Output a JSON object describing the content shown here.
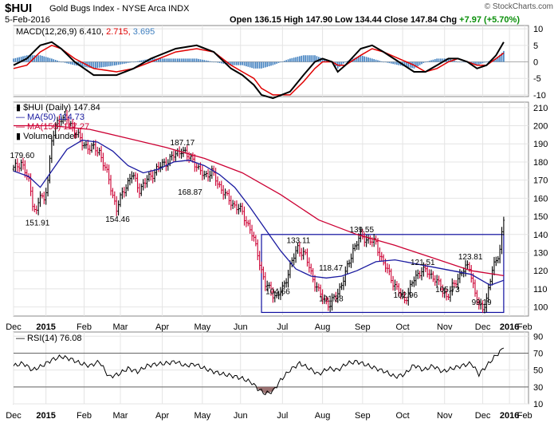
{
  "header": {
    "symbol": "$HUI",
    "name": "Gold Bugs Index - NYSE Arca INDX",
    "date": "5-Feb-2016",
    "open_label": "Open",
    "open": "136.15",
    "high_label": "High",
    "high": "147.90",
    "low_label": "Low",
    "low": "134.44",
    "close_label": "Close",
    "close": "147.84",
    "chg_label": "Chg",
    "chg": "+7.97 (+5.70%)",
    "brand": "© StockCharts.com"
  },
  "colors": {
    "up": "#000000",
    "down": "#cc0033",
    "ma50": "#1a1aa0",
    "ma150": "#cc0033",
    "macd_hist": "#3f7fbf",
    "signal": "#e00000",
    "rsi_fill": "#8b5a5a",
    "box": "#1010a0"
  },
  "chart_data": [
    {
      "id": "macd",
      "type": "line",
      "legend": {
        "label": "MACD(12,26,9)",
        "macd": "6.410",
        "signal": "2.715",
        "hist": "3.695"
      },
      "ylim": [
        -10.5,
        11
      ],
      "y_ticks": [
        10,
        5,
        0,
        -5,
        -10
      ],
      "macd_series": [
        [
          0,
          -1
        ],
        [
          7,
          1
        ],
        [
          14,
          5
        ],
        [
          20,
          6
        ],
        [
          25,
          4
        ],
        [
          32,
          0
        ],
        [
          42,
          -4
        ],
        [
          54,
          -4
        ],
        [
          63,
          -2
        ],
        [
          72,
          1
        ],
        [
          85,
          4
        ],
        [
          96,
          5
        ],
        [
          105,
          3
        ],
        [
          114,
          -2
        ],
        [
          120,
          -4
        ],
        [
          126,
          -7
        ],
        [
          130,
          -10
        ],
        [
          136,
          -11
        ],
        [
          145,
          -9
        ],
        [
          152,
          -4
        ],
        [
          158,
          0
        ],
        [
          162,
          1
        ],
        [
          167,
          0
        ],
        [
          170,
          -3
        ],
        [
          174,
          -1
        ],
        [
          182,
          4
        ],
        [
          188,
          5
        ],
        [
          194,
          3
        ],
        [
          202,
          0
        ],
        [
          210,
          -3
        ],
        [
          216,
          -3
        ],
        [
          222,
          -1
        ],
        [
          228,
          1
        ],
        [
          233,
          1
        ],
        [
          238,
          0
        ],
        [
          243,
          -2
        ],
        [
          248,
          -1
        ],
        [
          253,
          2
        ],
        [
          257,
          6
        ]
      ],
      "signal_series": [
        [
          0,
          -2
        ],
        [
          7,
          -1
        ],
        [
          14,
          3
        ],
        [
          20,
          5
        ],
        [
          25,
          4
        ],
        [
          32,
          1
        ],
        [
          42,
          -2
        ],
        [
          54,
          -3
        ],
        [
          63,
          -2
        ],
        [
          72,
          0
        ],
        [
          85,
          3
        ],
        [
          96,
          4
        ],
        [
          105,
          3
        ],
        [
          114,
          -1
        ],
        [
          120,
          -3
        ],
        [
          126,
          -5
        ],
        [
          130,
          -8
        ],
        [
          136,
          -10
        ],
        [
          145,
          -10
        ],
        [
          152,
          -6
        ],
        [
          158,
          -2
        ],
        [
          162,
          0
        ],
        [
          167,
          0
        ],
        [
          170,
          -1
        ],
        [
          174,
          -1
        ],
        [
          182,
          2
        ],
        [
          188,
          4
        ],
        [
          194,
          3
        ],
        [
          202,
          1
        ],
        [
          210,
          -1
        ],
        [
          216,
          -3
        ],
        [
          222,
          -2
        ],
        [
          228,
          0
        ],
        [
          233,
          1
        ],
        [
          238,
          0
        ],
        [
          243,
          -1
        ],
        [
          248,
          -1
        ],
        [
          253,
          1
        ],
        [
          257,
          2.7
        ]
      ]
    },
    {
      "id": "price",
      "type": "line",
      "legend": {
        "symbol_label": "$HUI (Daily)",
        "symbol_value": "147.84",
        "ma50_label": "MA(50)",
        "ma50_value": "114.73",
        "ma150_label": "MA(150)",
        "ma150_value": "117.27",
        "volume_label": "Volume undef"
      },
      "ylim": [
        95,
        213
      ],
      "y_ticks": [
        210,
        200,
        190,
        180,
        170,
        160,
        150,
        140,
        130,
        120,
        110,
        100
      ],
      "price_series": [
        [
          0,
          176
        ],
        [
          4,
          180
        ],
        [
          8,
          169
        ],
        [
          10,
          158
        ],
        [
          12,
          152
        ],
        [
          14,
          162
        ],
        [
          16,
          158
        ],
        [
          18,
          172
        ],
        [
          20,
          190
        ],
        [
          22,
          200
        ],
        [
          25,
          205
        ],
        [
          28,
          203
        ],
        [
          32,
          198
        ],
        [
          36,
          190
        ],
        [
          40,
          188
        ],
        [
          45,
          186
        ],
        [
          50,
          170
        ],
        [
          54,
          154
        ],
        [
          58,
          165
        ],
        [
          62,
          173
        ],
        [
          66,
          165
        ],
        [
          70,
          170
        ],
        [
          75,
          176
        ],
        [
          80,
          180
        ],
        [
          85,
          184
        ],
        [
          88,
          187
        ],
        [
          91,
          183
        ],
        [
          94,
          182
        ],
        [
          97,
          175
        ],
        [
          100,
          173
        ],
        [
          104,
          174
        ],
        [
          108,
          167
        ],
        [
          112,
          160
        ],
        [
          116,
          156
        ],
        [
          120,
          152
        ],
        [
          124,
          143
        ],
        [
          128,
          130
        ],
        [
          130,
          120
        ],
        [
          132,
          112
        ],
        [
          135,
          109
        ],
        [
          138,
          105
        ],
        [
          141,
          110
        ],
        [
          145,
          122
        ],
        [
          149,
          133
        ],
        [
          153,
          128
        ],
        [
          157,
          116
        ],
        [
          160,
          108
        ],
        [
          163,
          104
        ],
        [
          166,
          101
        ],
        [
          170,
          108
        ],
        [
          174,
          118
        ],
        [
          178,
          132
        ],
        [
          182,
          139
        ],
        [
          186,
          137
        ],
        [
          190,
          135
        ],
        [
          194,
          124
        ],
        [
          198,
          116
        ],
        [
          202,
          108
        ],
        [
          205,
          104
        ],
        [
          210,
          115
        ],
        [
          214,
          121
        ],
        [
          218,
          118
        ],
        [
          221,
          116
        ],
        [
          224,
          110
        ],
        [
          227,
          106
        ],
        [
          231,
          112
        ],
        [
          235,
          120
        ],
        [
          239,
          122
        ],
        [
          242,
          108
        ],
        [
          244,
          100
        ],
        [
          246,
          99
        ],
        [
          248,
          105
        ],
        [
          251,
          120
        ],
        [
          253,
          125
        ],
        [
          255,
          133
        ],
        [
          257,
          147.84
        ]
      ],
      "ma50_series": [
        [
          0,
          175
        ],
        [
          8,
          172
        ],
        [
          14,
          166
        ],
        [
          20,
          175
        ],
        [
          28,
          187
        ],
        [
          36,
          192
        ],
        [
          44,
          191
        ],
        [
          52,
          186
        ],
        [
          60,
          178
        ],
        [
          68,
          174
        ],
        [
          76,
          176
        ],
        [
          84,
          180
        ],
        [
          92,
          181
        ],
        [
          100,
          178
        ],
        [
          108,
          173
        ],
        [
          116,
          166
        ],
        [
          124,
          155
        ],
        [
          132,
          143
        ],
        [
          140,
          131
        ],
        [
          148,
          121
        ],
        [
          156,
          117
        ],
        [
          164,
          116
        ],
        [
          172,
          117
        ],
        [
          180,
          120
        ],
        [
          190,
          125
        ],
        [
          200,
          126
        ],
        [
          210,
          124
        ],
        [
          220,
          122
        ],
        [
          230,
          120
        ],
        [
          240,
          118
        ],
        [
          250,
          112
        ],
        [
          257,
          114.73
        ]
      ],
      "ma150_series": [
        [
          0,
          200
        ],
        [
          20,
          200
        ],
        [
          40,
          198
        ],
        [
          60,
          193
        ],
        [
          80,
          188
        ],
        [
          100,
          182
        ],
        [
          120,
          174
        ],
        [
          140,
          162
        ],
        [
          160,
          148
        ],
        [
          180,
          140
        ],
        [
          200,
          134
        ],
        [
          220,
          127
        ],
        [
          240,
          120
        ],
        [
          257,
          117.27
        ]
      ],
      "box": {
        "x0": 130,
        "x1": 257,
        "y0": 97,
        "y1": 140
      },
      "annotations": [
        {
          "x": 4,
          "y": 180,
          "text": "179.60"
        },
        {
          "x": 12,
          "y": 152,
          "text": "151.91"
        },
        {
          "x": 54,
          "y": 154,
          "text": "154.46"
        },
        {
          "x": 88,
          "y": 187,
          "text": "187.17"
        },
        {
          "x": 92,
          "y": 169,
          "text": "168.87"
        },
        {
          "x": 149,
          "y": 133,
          "text": "133.11"
        },
        {
          "x": 166,
          "y": 118,
          "text": "118.47"
        },
        {
          "x": 138,
          "y": 105,
          "text": "104.66"
        },
        {
          "x": 166,
          "y": 101,
          "text": "101.28"
        },
        {
          "x": 182,
          "y": 139,
          "text": "139.55"
        },
        {
          "x": 205,
          "y": 103,
          "text": "102.96"
        },
        {
          "x": 214,
          "y": 121,
          "text": "121.51"
        },
        {
          "x": 227,
          "y": 106,
          "text": "105.73"
        },
        {
          "x": 239,
          "y": 124,
          "text": "123.81"
        },
        {
          "x": 246,
          "y": 99,
          "text": "99.19"
        }
      ]
    },
    {
      "id": "rsi",
      "type": "line",
      "legend": {
        "label": "RSI(14)",
        "value": "76.08"
      },
      "ylim": [
        10,
        95
      ],
      "y_ticks": [
        90,
        70,
        50,
        30,
        10
      ],
      "ref_lines": [
        70,
        30
      ],
      "rsi_series": [
        [
          0,
          55
        ],
        [
          5,
          58
        ],
        [
          10,
          50
        ],
        [
          15,
          55
        ],
        [
          20,
          62
        ],
        [
          25,
          66
        ],
        [
          30,
          63
        ],
        [
          35,
          58
        ],
        [
          40,
          55
        ],
        [
          45,
          60
        ],
        [
          50,
          42
        ],
        [
          55,
          45
        ],
        [
          60,
          52
        ],
        [
          65,
          48
        ],
        [
          70,
          55
        ],
        [
          75,
          57
        ],
        [
          80,
          58
        ],
        [
          85,
          60
        ],
        [
          90,
          55
        ],
        [
          95,
          57
        ],
        [
          100,
          52
        ],
        [
          105,
          48
        ],
        [
          110,
          45
        ],
        [
          115,
          43
        ],
        [
          120,
          40
        ],
        [
          125,
          35
        ],
        [
          128,
          28
        ],
        [
          132,
          22
        ],
        [
          136,
          25
        ],
        [
          140,
          38
        ],
        [
          145,
          50
        ],
        [
          150,
          58
        ],
        [
          155,
          52
        ],
        [
          160,
          45
        ],
        [
          165,
          52
        ],
        [
          170,
          50
        ],
        [
          175,
          58
        ],
        [
          180,
          60
        ],
        [
          185,
          56
        ],
        [
          190,
          52
        ],
        [
          195,
          48
        ],
        [
          200,
          42
        ],
        [
          205,
          45
        ],
        [
          210,
          56
        ],
        [
          215,
          50
        ],
        [
          220,
          55
        ],
        [
          225,
          48
        ],
        [
          230,
          52
        ],
        [
          235,
          55
        ],
        [
          240,
          58
        ],
        [
          244,
          45
        ],
        [
          248,
          55
        ],
        [
          252,
          65
        ],
        [
          257,
          76
        ]
      ]
    }
  ],
  "x_axis": {
    "labels": [
      {
        "x": 0,
        "text": "Dec"
      },
      {
        "x": 17,
        "text": "2015",
        "bold": true
      },
      {
        "x": 37,
        "text": "Feb"
      },
      {
        "x": 56,
        "text": "Mar"
      },
      {
        "x": 78,
        "text": "Apr"
      },
      {
        "x": 99,
        "text": "May"
      },
      {
        "x": 119,
        "text": "Jun"
      },
      {
        "x": 141,
        "text": "Jul"
      },
      {
        "x": 162,
        "text": "Aug"
      },
      {
        "x": 183,
        "text": "Sep"
      },
      {
        "x": 204,
        "text": "Oct"
      },
      {
        "x": 226,
        "text": "Nov"
      },
      {
        "x": 246,
        "text": "Dec"
      },
      {
        "x": 260,
        "text": "2016",
        "bold": true
      },
      {
        "x": 268,
        "text": "Feb"
      }
    ]
  }
}
